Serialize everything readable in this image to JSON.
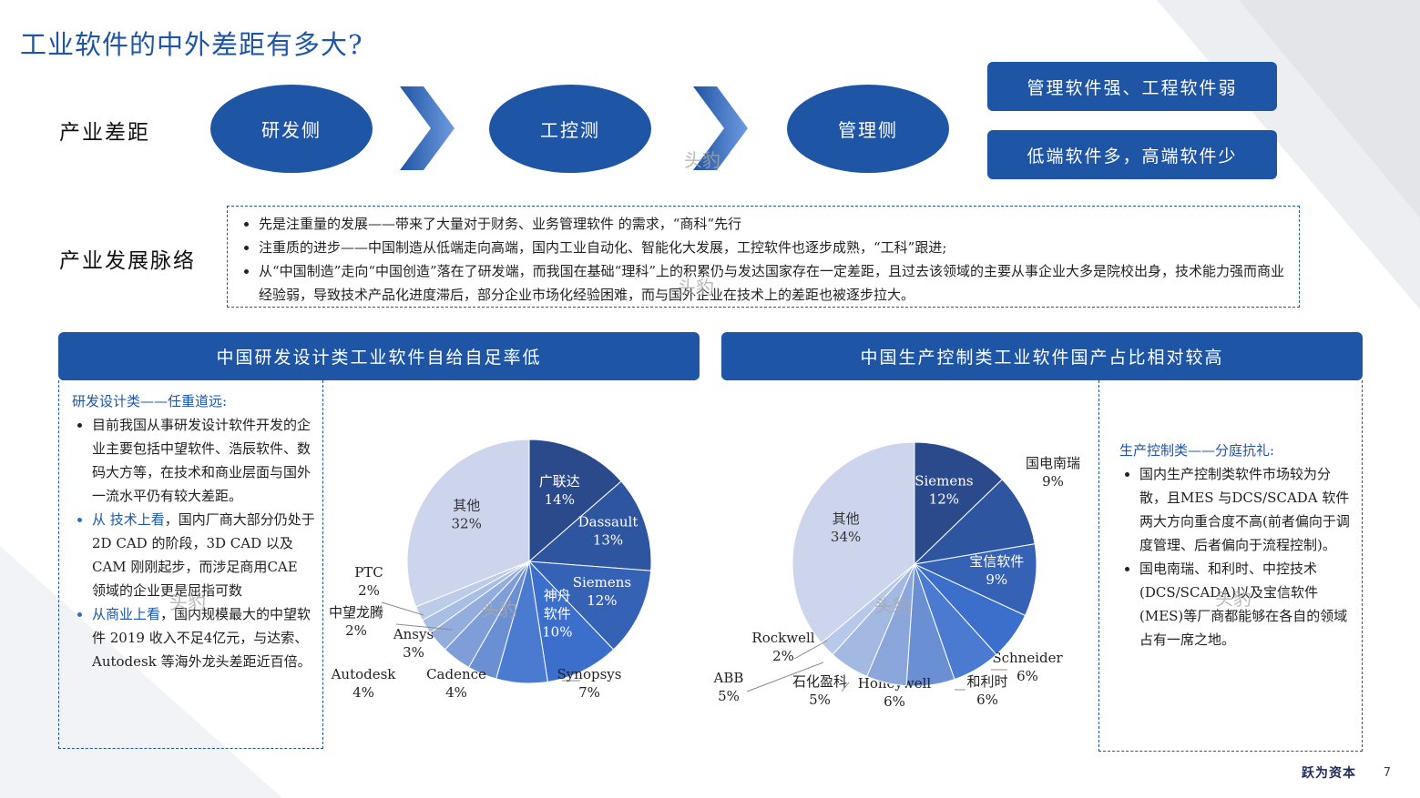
{
  "title": "工业软件的中外差距有多大?",
  "gap": {
    "label": "产业差距",
    "stages": [
      "研发侧",
      "工控测",
      "管理侧"
    ],
    "conclusions": [
      "管理软件强、工程软件弱",
      "低端软件多，高端软件少"
    ]
  },
  "development": {
    "label": "产业发展脉络",
    "bullets": [
      "先是注重量的发展——带来了大量对于财务、业务管理软件 的需求，“商科”先行",
      "注重质的进步——中国制造从低端走向高端，国内工业自动化、智能化大发展，工控软件也逐步成熟，“工科”跟进;",
      "从“中国制造”走向“中国创造”落在了研发端，而我国在基础“理科”上的积累仍与发达国家存在一定差距，且过去该领域的主要从事企业大多是院校出身，技术能力强而商业经验弱，导致技术产品化进度滞后，部分企业市场化经验困难，而与国外企业在技术上的差距也被逐步拉大。"
    ]
  },
  "left_panel": {
    "banner": "中国研发设计类工业软件自给自足率低",
    "heading": "研发设计类——任重道远:",
    "items": [
      {
        "highlight": "",
        "text": "目前我国从事研发设计软件开发的企业主要包括中望软件、浩辰软件、数码大方等，在技术和商业层面与国外一流水平仍有较大差距。"
      },
      {
        "highlight": "从 技术上看",
        "text": "，国内厂商大部分仍处于2D CAD 的阶段，3D CAD 以及CAM 刚刚起步，而涉足商用CAE 领域的企业更是屈指可数"
      },
      {
        "highlight": "从商业上看",
        "text": "，国内规模最大的中望软件 2019 收入不足4亿元，与达索、Autodesk 等海外龙头差距近百倍。"
      }
    ]
  },
  "right_panel": {
    "banner": "中国生产控制类工业软件国产占比相对较高",
    "heading": "生产控制类——分庭抗礼:",
    "items": [
      "国内生产控制类软件市场较为分散，且MES 与DCS/SCADA 软件两大方向重合度不高(前者偏向于调度管理、后者偏向于流程控制)。",
      "国电南瑞、和利时、中控技术(DCS/SCADA)以及宝信软件 (MES)等厂商都能够在各自的领域占有一席之地。"
    ]
  },
  "chart_data": [
    {
      "type": "pie",
      "title": "",
      "slices": [
        {
          "label": "广联达",
          "value": 14,
          "pct": "14%",
          "color": "#2b4a8c"
        },
        {
          "label": "Dassault",
          "value": 13,
          "pct": "13%",
          "color": "#2e55a0"
        },
        {
          "label": "Siemens",
          "value": 12,
          "pct": "12%",
          "color": "#3562b5"
        },
        {
          "label": "神舟软件",
          "value": 10,
          "pct": "10%",
          "color": "#3b6fcb"
        },
        {
          "label": "Synopsys",
          "value": 7,
          "pct": "7%",
          "color": "#4a7bd0"
        },
        {
          "label": "Cadence",
          "value": 4,
          "pct": "4%",
          "color": "#6a8fd3"
        },
        {
          "label": "Autodesk",
          "value": 4,
          "pct": "4%",
          "color": "#7f9ed8"
        },
        {
          "label": "Ansys",
          "value": 3,
          "pct": "3%",
          "color": "#93aedd"
        },
        {
          "label": "中望龙腾",
          "value": 2,
          "pct": "2%",
          "color": "#a9bee3"
        },
        {
          "label": "PTC",
          "value": 2,
          "pct": "2%",
          "color": "#bccbe8"
        },
        {
          "label": "其他",
          "value": 32,
          "pct": "32%",
          "color": "#ccd5ec"
        }
      ]
    },
    {
      "type": "pie",
      "title": "",
      "slices": [
        {
          "label": "Siemens",
          "value": 12,
          "pct": "12%",
          "color": "#2b4a8c"
        },
        {
          "label": "国电南瑞",
          "value": 9,
          "pct": "9%",
          "color": "#2e55a0"
        },
        {
          "label": "宝信软件",
          "value": 9,
          "pct": "9%",
          "color": "#3562b5"
        },
        {
          "label": "Schneider",
          "value": 6,
          "pct": "6%",
          "color": "#3b6fcb"
        },
        {
          "label": "和利时",
          "value": 6,
          "pct": "6%",
          "color": "#4a7bd0"
        },
        {
          "label": "Honeywell",
          "value": 6,
          "pct": "6%",
          "color": "#6a8fd3"
        },
        {
          "label": "石化盈科",
          "value": 5,
          "pct": "5%",
          "color": "#8aa6db"
        },
        {
          "label": "ABB",
          "value": 5,
          "pct": "5%",
          "color": "#a3b9e2"
        },
        {
          "label": "Rockwell",
          "value": 2,
          "pct": "2%",
          "color": "#b8c8e8"
        },
        {
          "label": "其他",
          "value": 34,
          "pct": "34%",
          "color": "#ccd5ec"
        }
      ]
    }
  ],
  "watermark": "头豹",
  "footer": {
    "logo": "跃为资本",
    "page": "7"
  }
}
